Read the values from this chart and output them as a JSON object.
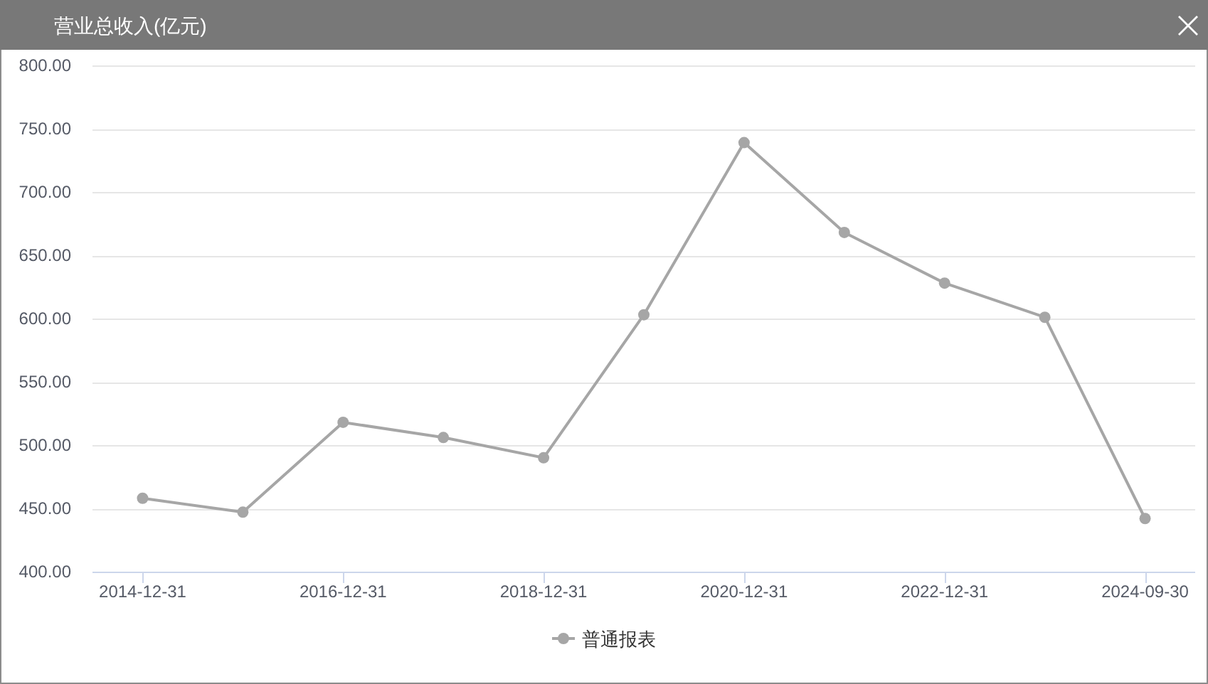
{
  "chart_data": {
    "type": "line",
    "title": "营业总收入(亿元)",
    "categories": [
      "2014-12-31",
      null,
      "2016-12-31",
      null,
      "2018-12-31",
      null,
      "2020-12-31",
      null,
      "2022-12-31",
      null,
      "2024-09-30"
    ],
    "series": [
      {
        "name": "普通报表",
        "color": "#a6a6a6",
        "values": [
          458,
          447,
          518,
          506,
          490,
          603,
          739,
          668,
          628,
          601,
          442
        ]
      }
    ],
    "ylim": [
      400,
      800
    ],
    "yticks": [
      {
        "value": 400,
        "label": "400.00"
      },
      {
        "value": 450,
        "label": "450.00"
      },
      {
        "value": 500,
        "label": "500.00"
      },
      {
        "value": 550,
        "label": "550.00"
      },
      {
        "value": 600,
        "label": "600.00"
      },
      {
        "value": 650,
        "label": "650.00"
      },
      {
        "value": 700,
        "label": "700.00"
      },
      {
        "value": 750,
        "label": "750.00"
      },
      {
        "value": 800,
        "label": "800.00"
      }
    ],
    "grid": "y",
    "legend": "bottom",
    "marker": "circle",
    "line_style": "solid"
  }
}
